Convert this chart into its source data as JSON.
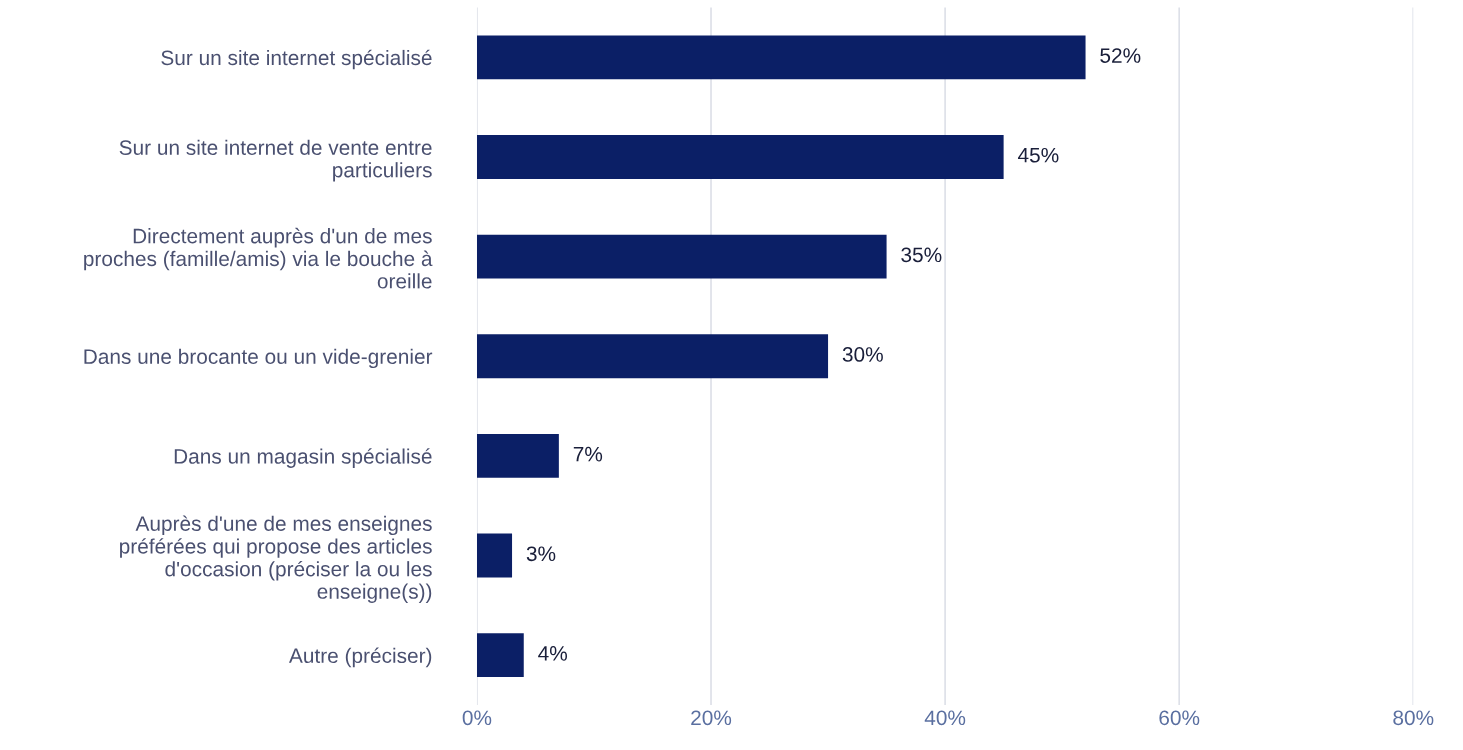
{
  "chart_data": {
    "type": "bar",
    "orientation": "horizontal",
    "categories": [
      "Sur un site internet spécialisé",
      "Sur un site internet de vente entre\nparticuliers",
      "Directement auprès d'un de mes\nproches (famille/amis) via le bouche à\noreille",
      "Dans une brocante ou un vide-grenier",
      "Dans un magasin spécialisé",
      "Auprès d'une de mes enseignes\npréférées qui propose des articles\nd'occasion (préciser la ou les\nenseigne(s))",
      "Autre (préciser)"
    ],
    "values": [
      52,
      45,
      35,
      30,
      7,
      3,
      4
    ],
    "value_labels": [
      "52%",
      "45%",
      "35%",
      "30%",
      "7%",
      "3%",
      "4%"
    ],
    "color": "#0b1f66",
    "xlim": [
      0,
      80
    ],
    "xticks": [
      {
        "value": 0,
        "label": "0%"
      },
      {
        "value": 20,
        "label": "20%"
      },
      {
        "value": 40,
        "label": "40%"
      },
      {
        "value": 60,
        "label": "60%"
      },
      {
        "value": 80,
        "label": "80%"
      }
    ],
    "grid": "x"
  }
}
